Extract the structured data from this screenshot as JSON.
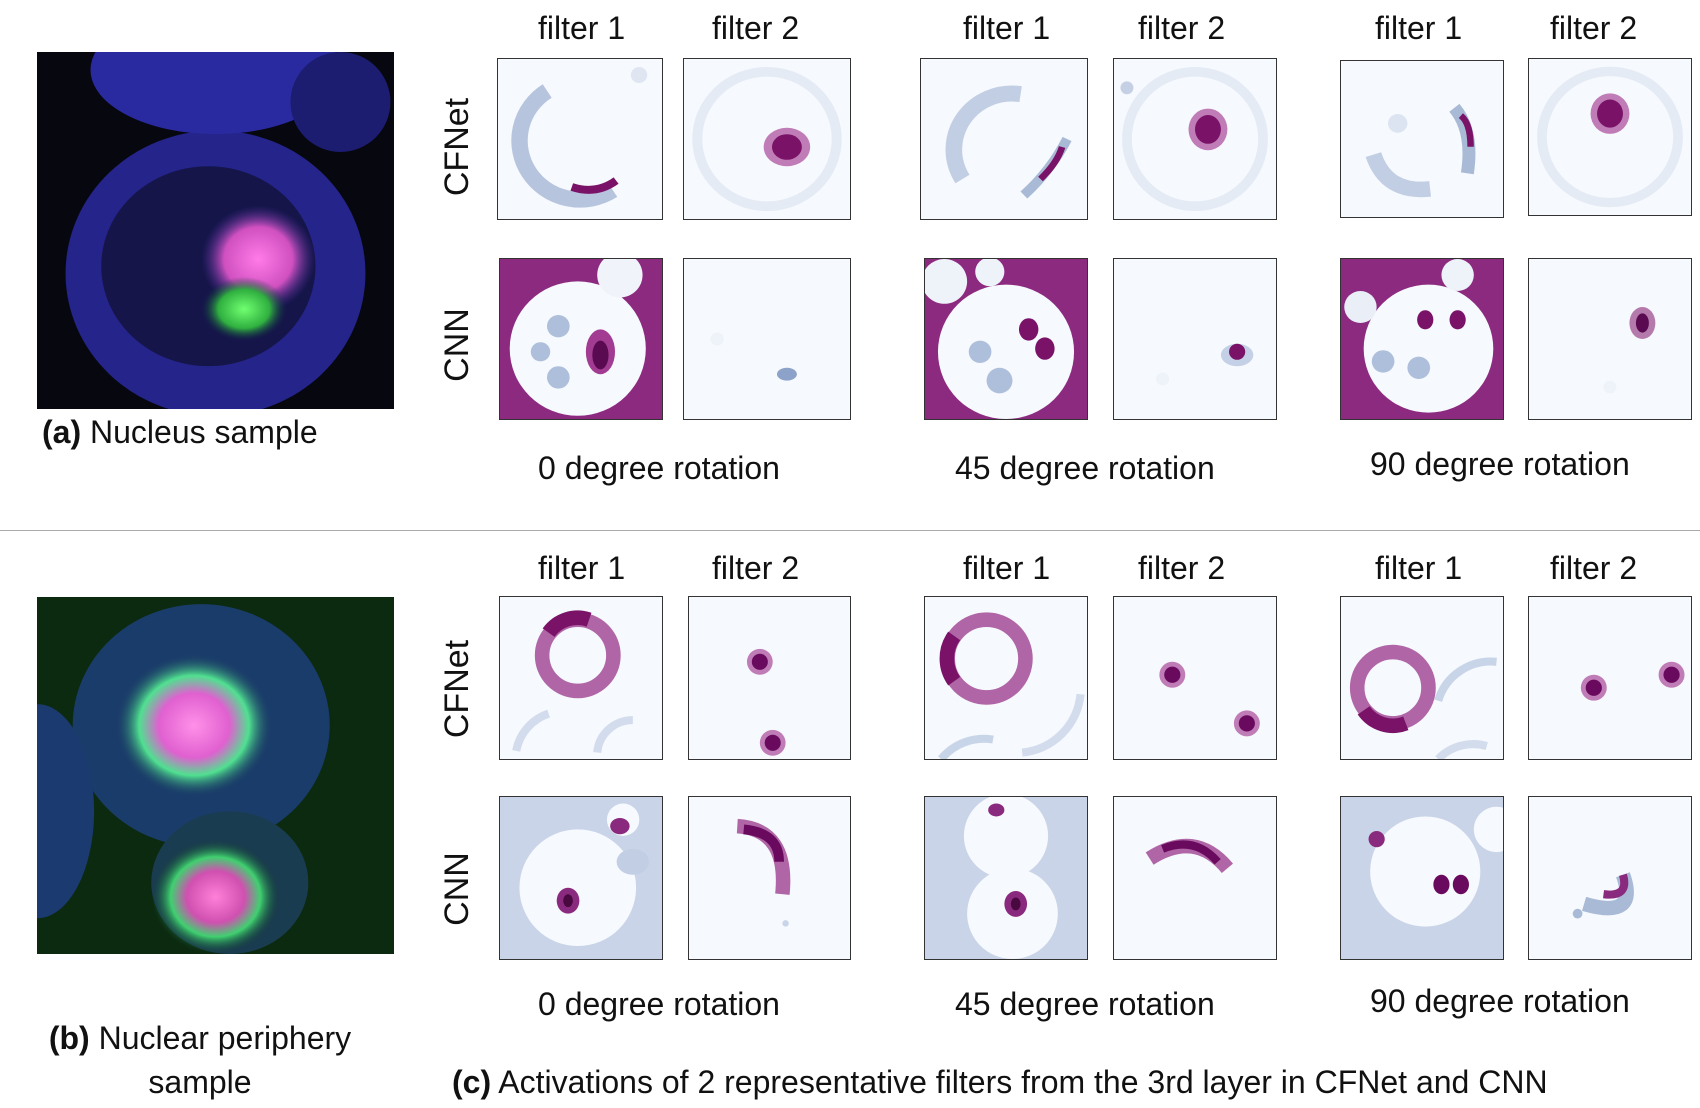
{
  "sections": [
    {
      "sample_caption_bold": "(a)",
      "sample_caption_text": "Nucleus sample",
      "sample_caption_line2": "",
      "row_labels": [
        "CFNet",
        "CNN"
      ],
      "groups": [
        {
          "filters": [
            "filter 1",
            "filter 2"
          ],
          "caption": "0 degree rotation"
        },
        {
          "filters": [
            "filter 1",
            "filter 2"
          ],
          "caption": "45 degree rotation"
        },
        {
          "filters": [
            "filter 1",
            "filter 2"
          ],
          "caption": "90 degree rotation"
        }
      ]
    },
    {
      "sample_caption_bold": "(b)",
      "sample_caption_text": "Nuclear periphery",
      "sample_caption_line2": "sample",
      "row_labels": [
        "CFNet",
        "CNN"
      ],
      "groups": [
        {
          "filters": [
            "filter 1",
            "filter 2"
          ],
          "caption": "0 degree rotation"
        },
        {
          "filters": [
            "filter 1",
            "filter 2"
          ],
          "caption": "45 degree rotation"
        },
        {
          "filters": [
            "filter 1",
            "filter 2"
          ],
          "caption": "90 degree rotation"
        }
      ]
    }
  ],
  "figure_caption_bold": "(c)",
  "figure_caption_text": "Activations of 2 representative filters from the 3rd layer in CFNet and CNN",
  "colors": {
    "activation_high": "#7a1268",
    "activation_mid": "#a9bad6",
    "activation_low": "#f6f9fd",
    "sample_a_background": "#0a0a12",
    "sample_b_background": "#0c2a10"
  }
}
